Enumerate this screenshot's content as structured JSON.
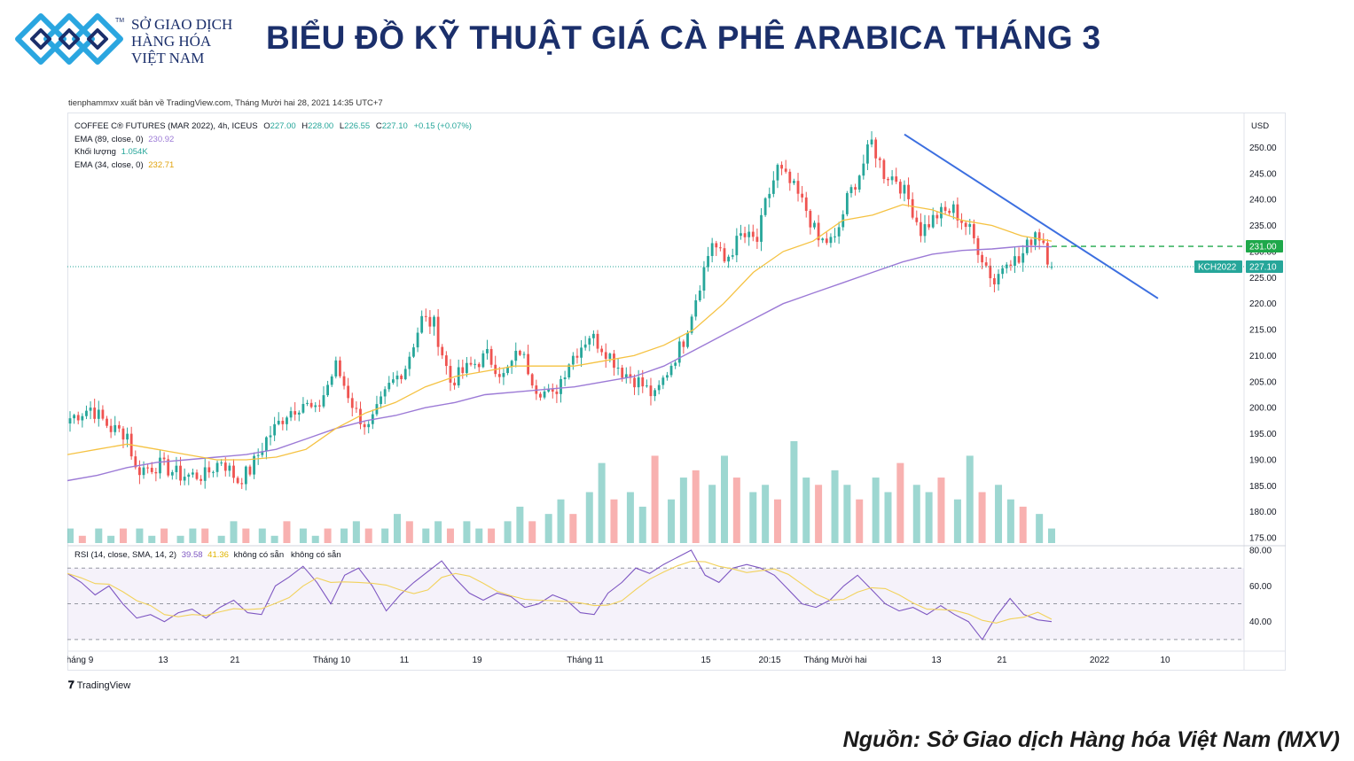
{
  "header": {
    "logo_lines": [
      "SỞ GIAO DỊCH",
      "HÀNG HÓA",
      "VIỆT NAM"
    ],
    "logo_tm": "TM",
    "title": "BIỂU ĐỒ KỸ THUẬT GIÁ CÀ PHÊ ARABICA THÁNG 3"
  },
  "publish_line": "tienphammxv xuất bản về TradingView.com, Tháng Mười hai 28, 2021 14:35 UTC+7",
  "legend": {
    "symbol": "COFFEE C® FUTURES (MAR 2022), 4h, ICEUS",
    "ohlc": [
      {
        "k": "O",
        "v": "227.00"
      },
      {
        "k": "H",
        "v": "228.00"
      },
      {
        "k": "L",
        "v": "226.55"
      },
      {
        "k": "C",
        "v": "227.10"
      }
    ],
    "change": "+0.15 (+0.07%)",
    "ema89_label": "EMA (89, close, 0)",
    "ema89_value": "230.92",
    "volume_label": "Khối lượng",
    "volume_value": "1.054K",
    "ema34_label": "EMA (34, close, 0)",
    "ema34_value": "232.71",
    "rsi_label": "RSI (14, close, SMA, 14, 2)",
    "rsi_value": "39.58",
    "rsi_ma_value": "41.36",
    "rsi_na": "không có sẵn   không có sẵn"
  },
  "currency": "USD",
  "tradingview_label": "TradingView",
  "source": "Nguồn: Sở Giao dịch Hàng hóa Việt Nam (MXV)",
  "colors": {
    "up": "#26a69a",
    "down": "#ef5350",
    "ema34": "#f5c242",
    "ema89": "#9c7ad6",
    "trendline": "#3c6fe0",
    "rsi": "#7e57c2",
    "rsi_ma": "#f2d25c",
    "navy": "#1b2f6b",
    "logo_blue": "#2aa6e0"
  },
  "chart_data": [
    {
      "type": "candlestick",
      "name": "price",
      "y_ticks": [
        "175.00",
        "180.00",
        "185.00",
        "190.00",
        "195.00",
        "200.00",
        "205.00",
        "210.00",
        "215.00",
        "220.00",
        "225.00",
        "230.00",
        "235.00",
        "240.00",
        "245.00",
        "250.00"
      ],
      "y_range": [
        174,
        255
      ],
      "x_tick_labels": [
        "háng 9",
        "13",
        "21",
        "Tháng 10",
        "11",
        "19",
        "Tháng 11",
        "15",
        "20:15",
        "Tháng Mười hai",
        "13",
        "21",
        "2022",
        "10"
      ],
      "price_path": [
        [
          0,
          198
        ],
        [
          5,
          200
        ],
        [
          10,
          196
        ],
        [
          14,
          195
        ],
        [
          16,
          188
        ],
        [
          22,
          189
        ],
        [
          27,
          187
        ],
        [
          33,
          187
        ],
        [
          37,
          190
        ],
        [
          41,
          186
        ],
        [
          44,
          188
        ],
        [
          48,
          194
        ],
        [
          53,
          199
        ],
        [
          57,
          201
        ],
        [
          60,
          199
        ],
        [
          65,
          208
        ],
        [
          70,
          199
        ],
        [
          73,
          196
        ],
        [
          78,
          204
        ],
        [
          82,
          208
        ],
        [
          86,
          217
        ],
        [
          89,
          216
        ],
        [
          93,
          205
        ],
        [
          98,
          208
        ],
        [
          102,
          210
        ],
        [
          106,
          206
        ],
        [
          110,
          211
        ],
        [
          114,
          204
        ],
        [
          118,
          202
        ],
        [
          122,
          209
        ],
        [
          127,
          214
        ],
        [
          131,
          211
        ],
        [
          135,
          207
        ],
        [
          139,
          205
        ],
        [
          143,
          202
        ],
        [
          146,
          207
        ],
        [
          150,
          213
        ],
        [
          154,
          224
        ],
        [
          157,
          232
        ],
        [
          160,
          228
        ],
        [
          164,
          233
        ],
        [
          168,
          232
        ],
        [
          170,
          239
        ],
        [
          173,
          246
        ],
        [
          177,
          242
        ],
        [
          180,
          238
        ],
        [
          183,
          232
        ],
        [
          187,
          232
        ],
        [
          190,
          240
        ],
        [
          193,
          245
        ],
        [
          196,
          251
        ],
        [
          199,
          245
        ],
        [
          202,
          244
        ],
        [
          205,
          240
        ],
        [
          208,
          234
        ],
        [
          212,
          237
        ],
        [
          216,
          238
        ],
        [
          220,
          234
        ],
        [
          223,
          229
        ],
        [
          226,
          224
        ],
        [
          229,
          229
        ],
        [
          232,
          228
        ],
        [
          234,
          231
        ],
        [
          236,
          234
        ],
        [
          238,
          232
        ],
        [
          239,
          229
        ],
        [
          241,
          227
        ]
      ],
      "last_candle": {
        "open": 227.0,
        "high": 228.0,
        "low": 226.55,
        "close": 227.1
      },
      "labels": {
        "level": "231.00",
        "last": "227.10",
        "ticker": "KCH2022"
      },
      "level_line": 231.0,
      "trendline": {
        "from": [
          204,
          252.5
        ],
        "to": [
          266,
          221
        ]
      }
    },
    {
      "type": "line",
      "name": "EMA 34",
      "value": 232.71,
      "values": [
        191,
        192,
        193,
        192,
        191,
        190,
        190,
        190.5,
        192,
        196,
        199,
        201,
        204,
        206,
        207,
        208,
        208,
        208,
        209,
        210,
        212,
        215,
        220,
        226,
        230,
        232,
        236,
        237,
        239,
        238,
        236,
        235,
        233,
        232
      ]
    },
    {
      "type": "line",
      "name": "EMA 89",
      "value": 230.92,
      "values": [
        186,
        187,
        188.5,
        189.5,
        190,
        190.5,
        191,
        192,
        194,
        196,
        197.5,
        198.5,
        200,
        201,
        202.5,
        203,
        203.5,
        204,
        205,
        206,
        208,
        211,
        214,
        217,
        220,
        222,
        224,
        226,
        228,
        229.5,
        230.2,
        230.5,
        231,
        230.9
      ]
    },
    {
      "type": "bar",
      "name": "Khối lượng",
      "value": "1.054K",
      "values": [
        2,
        1,
        2,
        1,
        2,
        2,
        1,
        2,
        1,
        2,
        2,
        1,
        3,
        2,
        2,
        1,
        3,
        2,
        1,
        2,
        2,
        3,
        2,
        2,
        4,
        3,
        2,
        3,
        2,
        3,
        2,
        2,
        3,
        5,
        3,
        4,
        6,
        4,
        7,
        11,
        6,
        7,
        5,
        12,
        6,
        9,
        10,
        8,
        12,
        9,
        7,
        8,
        6,
        14,
        9,
        8,
        10,
        8,
        6,
        9,
        7,
        11,
        8,
        7,
        9,
        6,
        12,
        7,
        8,
        6,
        5,
        4,
        2
      ]
    },
    {
      "type": "line",
      "name": "RSI",
      "y_ticks": [
        "40.00",
        "60.00",
        "80.00"
      ],
      "y_range": [
        25,
        82
      ],
      "bands": [
        30,
        50,
        70
      ],
      "value": 39.58,
      "ma_value": 41.36,
      "values": [
        67,
        62,
        55,
        60,
        50,
        42,
        44,
        40,
        45,
        47,
        42,
        48,
        52,
        45,
        44,
        60,
        65,
        71,
        62,
        50,
        66,
        70,
        60,
        46,
        55,
        62,
        68,
        74,
        64,
        56,
        52,
        56,
        54,
        48,
        50,
        55,
        52,
        45,
        44,
        56,
        62,
        70,
        67,
        72,
        76,
        80,
        66,
        62,
        70,
        72,
        70,
        66,
        58,
        50,
        48,
        52,
        60,
        66,
        58,
        50,
        46,
        48,
        44,
        49,
        44,
        40,
        30,
        43,
        53,
        44,
        41,
        40
      ]
    }
  ]
}
